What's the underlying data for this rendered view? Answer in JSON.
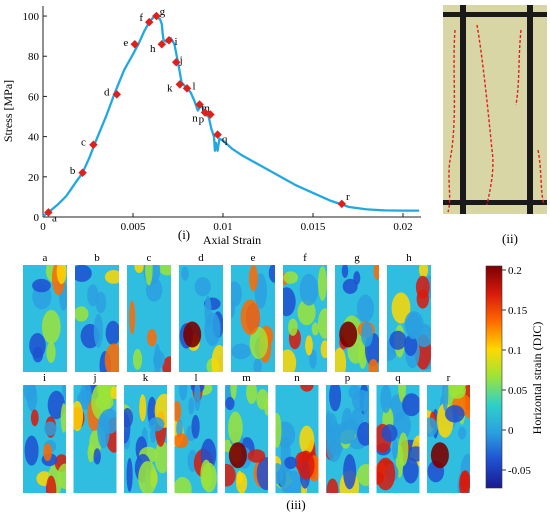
{
  "panel_labels": {
    "i": "(i)",
    "ii": "(ii)",
    "iii": "(iii)"
  },
  "chart_data": {
    "type": "line",
    "xlabel": "Axial Strain",
    "ylabel": "Stress [MPa]",
    "xlim": [
      0,
      0.021
    ],
    "ylim": [
      0,
      105
    ],
    "xticks": [
      0,
      0.005,
      0.01,
      0.015,
      0.02
    ],
    "xtick_labels": [
      "0",
      "0.005",
      "0.01",
      "0.015",
      "0.02"
    ],
    "yticks": [
      0,
      20,
      40,
      60,
      80,
      100
    ],
    "ytick_labels": [
      "0",
      "20",
      "40",
      "60",
      "80",
      "100"
    ],
    "grid": false,
    "series_color": "#21a8e0",
    "marker_color": "#e0201b",
    "curve": [
      [
        0.0,
        0.5
      ],
      [
        0.0003,
        2.3
      ],
      [
        0.0008,
        6
      ],
      [
        0.0013,
        10.5
      ],
      [
        0.0018,
        17
      ],
      [
        0.0022,
        22
      ],
      [
        0.0026,
        30
      ],
      [
        0.0029,
        37
      ],
      [
        0.0035,
        50
      ],
      [
        0.004,
        62
      ],
      [
        0.0045,
        73
      ],
      [
        0.005,
        81
      ],
      [
        0.0053,
        86
      ],
      [
        0.0056,
        92
      ],
      [
        0.0059,
        97
      ],
      [
        0.0062,
        100
      ],
      [
        0.0064,
        99
      ],
      [
        0.0065,
        98.5
      ],
      [
        0.0066,
        96
      ],
      [
        0.00665,
        91
      ],
      [
        0.0067,
        88
      ],
      [
        0.0069,
        87
      ],
      [
        0.0071,
        89
      ],
      [
        0.0073,
        86
      ],
      [
        0.0075,
        77
      ],
      [
        0.0076,
        72
      ],
      [
        0.0077,
        67
      ],
      [
        0.0079,
        65
      ],
      [
        0.0082,
        62
      ],
      [
        0.0084,
        58
      ],
      [
        0.0086,
        53
      ],
      [
        0.0088,
        56
      ],
      [
        0.009,
        51
      ],
      [
        0.0092,
        50
      ],
      [
        0.00935,
        44
      ],
      [
        0.0095,
        40
      ],
      [
        0.00955,
        33
      ],
      [
        0.0096,
        37
      ],
      [
        0.0097,
        33
      ],
      [
        0.0098,
        39
      ],
      [
        0.01,
        38
      ],
      [
        0.0105,
        34
      ],
      [
        0.011,
        31
      ],
      [
        0.012,
        26
      ],
      [
        0.013,
        21
      ],
      [
        0.014,
        16
      ],
      [
        0.015,
        12
      ],
      [
        0.016,
        8
      ],
      [
        0.0165,
        6.5
      ],
      [
        0.017,
        5
      ],
      [
        0.018,
        3.8
      ],
      [
        0.019,
        3.3
      ],
      [
        0.02,
        3.2
      ],
      [
        0.0205,
        3.2
      ],
      [
        0.0209,
        3.2
      ]
    ],
    "points": [
      {
        "label": "a",
        "x": 0.0003,
        "y": 2.3
      },
      {
        "label": "b",
        "x": 0.0022,
        "y": 22
      },
      {
        "label": "c",
        "x": 0.0028,
        "y": 36
      },
      {
        "label": "d",
        "x": 0.0041,
        "y": 61
      },
      {
        "label": "e",
        "x": 0.0051,
        "y": 86
      },
      {
        "label": "f",
        "x": 0.0059,
        "y": 97
      },
      {
        "label": "g",
        "x": 0.0063,
        "y": 100
      },
      {
        "label": "h",
        "x": 0.0066,
        "y": 86
      },
      {
        "label": "i",
        "x": 0.007,
        "y": 88
      },
      {
        "label": "j",
        "x": 0.0074,
        "y": 77
      },
      {
        "label": "k",
        "x": 0.0076,
        "y": 66
      },
      {
        "label": "l",
        "x": 0.008,
        "y": 64
      },
      {
        "label": "m",
        "x": 0.0087,
        "y": 56
      },
      {
        "label": "n",
        "x": 0.009,
        "y": 52
      },
      {
        "label": "p",
        "x": 0.0093,
        "y": 51
      },
      {
        "label": "q",
        "x": 0.0097,
        "y": 41
      },
      {
        "label": "r",
        "x": 0.0166,
        "y": 6.5
      }
    ]
  },
  "photo_panel": {
    "bg_color": "#d7d6a4",
    "frame_color": "#1a1a1a",
    "crack_color": "#e02020"
  },
  "dic_panel": {
    "frames_row1": [
      "a",
      "b",
      "c",
      "d",
      "e",
      "f",
      "g",
      "h"
    ],
    "frames_row2": [
      "i",
      "j",
      "k",
      "l",
      "m",
      "n",
      "p",
      "q",
      "r"
    ],
    "colorbar": {
      "label": "Horizontal strain (DIC)",
      "ticks": [
        "0.2",
        "0.15",
        "0.1",
        "0.05",
        "0",
        "-0.05"
      ],
      "colors": [
        "#7a0000",
        "#d81a0c",
        "#ff6a00",
        "#ffd800",
        "#9be33a",
        "#2fd0c8",
        "#2aa0e0",
        "#1e50d0",
        "#1a1a90"
      ]
    }
  }
}
